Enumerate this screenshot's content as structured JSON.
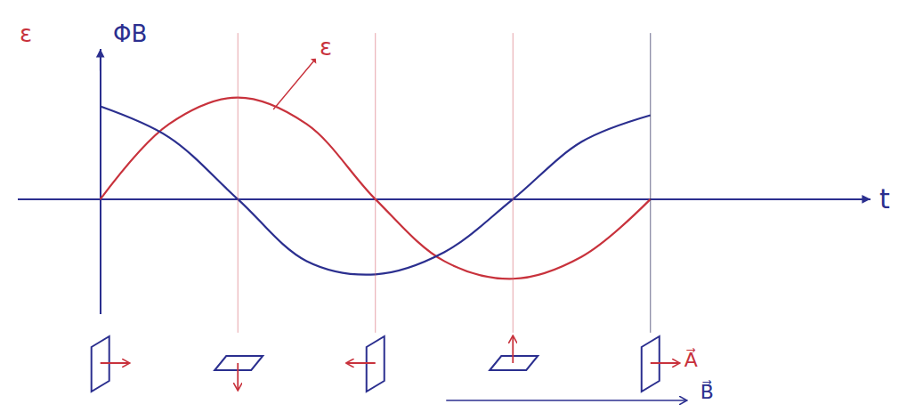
{
  "chart_data": {
    "type": "line",
    "x_label": "t",
    "xlim": [
      -0.6,
      5.6
    ],
    "ylim": [
      -1.3,
      1.7
    ],
    "grid": false,
    "tick_labels": false,
    "x": [
      0,
      0.5,
      1,
      1.5,
      2,
      2.5,
      3,
      3.5,
      4
    ],
    "series": [
      {
        "name": "ε",
        "color": "#c8323c",
        "values": [
          0.0,
          0.85,
          1.15,
          0.85,
          0.0,
          -0.7,
          -0.9,
          -0.65,
          0.0
        ]
      },
      {
        "name": "ΦB",
        "color": "#2b2f8f",
        "values": [
          1.05,
          0.7,
          0.0,
          -0.7,
          -0.85,
          -0.6,
          0.0,
          0.65,
          0.95
        ]
      }
    ],
    "annotations": [
      {
        "text": "ε",
        "x": 1.25,
        "y": 1.0,
        "color": "#c8323c"
      }
    ],
    "guides": [
      1,
      2,
      3,
      4
    ],
    "loops": [
      {
        "x": 0,
        "area_direction": "right"
      },
      {
        "x": 1,
        "area_direction": "down"
      },
      {
        "x": 2,
        "area_direction": "left"
      },
      {
        "x": 3,
        "area_direction": "up"
      },
      {
        "x": 4,
        "area_direction": "right"
      }
    ],
    "area_label": "A⃗",
    "field_label": "B⃗"
  }
}
